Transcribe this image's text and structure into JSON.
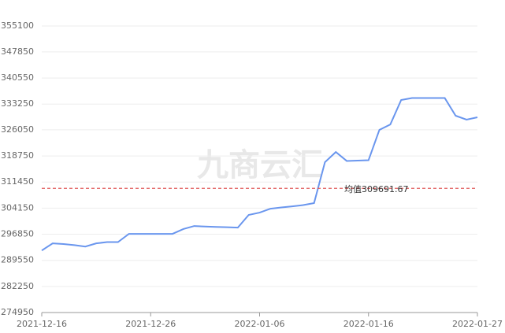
{
  "chart_data": {
    "type": "line",
    "watermark": "九商云汇",
    "categories": [
      "2021-12-16",
      null,
      null,
      null,
      null,
      null,
      null,
      null,
      null,
      null,
      "2021-12-26",
      null,
      null,
      null,
      null,
      null,
      null,
      null,
      null,
      null,
      "2022-01-06",
      null,
      null,
      null,
      null,
      null,
      null,
      null,
      null,
      null,
      "2022-01-16",
      null,
      null,
      null,
      null,
      null,
      null,
      null,
      null,
      null,
      "2022-01-27"
    ],
    "series": [
      {
        "color": "#6a96ee",
        "values": [
          292300,
          294300,
          294100,
          293800,
          293400,
          294300,
          294650,
          294650,
          296950,
          296950,
          296950,
          296950,
          296950,
          298300,
          299150,
          299000,
          298900,
          298800,
          298700,
          302250,
          302900,
          304000,
          304350,
          304650,
          305000,
          305550,
          317000,
          319850,
          317350,
          317450,
          317550,
          326050,
          327550,
          334400,
          334950,
          334950,
          334950,
          334950,
          330000,
          328900,
          329550
        ]
      }
    ],
    "ylim": [
      274950,
      355100
    ],
    "yticks": [
      274950,
      282250,
      289550,
      296850,
      304150,
      311450,
      318750,
      326050,
      333250,
      340550,
      347850,
      355100
    ],
    "grid": true,
    "mean_line": {
      "value": 309691.67,
      "label": "均值309691.67",
      "color": "#e05a5a"
    }
  }
}
